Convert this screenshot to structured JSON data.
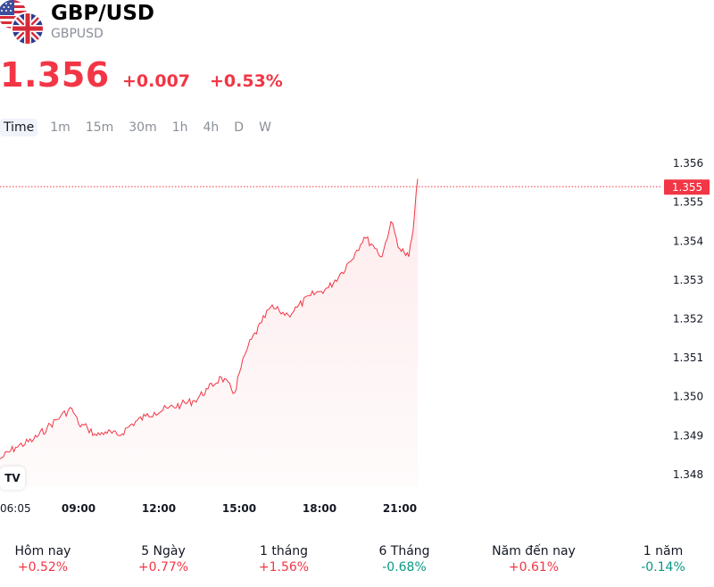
{
  "header": {
    "title": "GBP/USD",
    "code": "GBPUSD",
    "price": "1.356",
    "change_abs": "+0.007",
    "change_pct": "+0.53%"
  },
  "flags": [
    "us-flag-icon",
    "uk-flag-icon"
  ],
  "timeframes": [
    "Time",
    "1m",
    "15m",
    "30m",
    "1h",
    "4h",
    "D",
    "W"
  ],
  "active_timeframe": "Time",
  "logo_text": "TV",
  "colors": {
    "up": "#f23645",
    "down": "#089981",
    "line": "#f23645",
    "text": "#131722",
    "muted": "#8a8f98"
  },
  "chart_data": {
    "type": "area",
    "x_ticks": [
      "06:05",
      "09:00",
      "12:00",
      "15:00",
      "18:00",
      "21:00"
    ],
    "y_ticks": [
      "1.356",
      "1.355",
      "1.354",
      "1.353",
      "1.352",
      "1.351",
      "1.350",
      "1.349",
      "1.348"
    ],
    "ylim": [
      1.3477,
      1.3563
    ],
    "current_price_label": "1.355",
    "current_price": 1.3554,
    "x": [
      "06:05",
      "06:40",
      "07:20",
      "07:50",
      "08:20",
      "08:45",
      "09:00",
      "09:20",
      "09:40",
      "10:00",
      "10:30",
      "11:00",
      "11:30",
      "11:50",
      "12:20",
      "12:50",
      "13:20",
      "13:50",
      "14:20",
      "14:50",
      "15:00",
      "15:20",
      "15:50",
      "16:10",
      "16:30",
      "16:50",
      "17:10",
      "17:40",
      "18:00",
      "18:20",
      "18:50",
      "19:20",
      "19:40",
      "20:00",
      "20:20",
      "20:40",
      "21:00",
      "21:10",
      "21:20",
      "21:30",
      "21:40"
    ],
    "values": [
      1.3484,
      1.3487,
      1.3489,
      1.3492,
      1.3495,
      1.3497,
      1.3493,
      1.3492,
      1.349,
      1.3491,
      1.349,
      1.3493,
      1.3495,
      1.3496,
      1.3497,
      1.3498,
      1.3499,
      1.3502,
      1.3505,
      1.3501,
      1.3506,
      1.3513,
      1.3519,
      1.3523,
      1.3522,
      1.3521,
      1.3523,
      1.3526,
      1.3527,
      1.3528,
      1.3532,
      1.3537,
      1.3541,
      1.3539,
      1.3536,
      1.3545,
      1.3538,
      1.3537,
      1.3536,
      1.3543,
      1.3556
    ]
  },
  "performance": [
    {
      "label": "Hôm nay",
      "value": "+0.52%",
      "direction": "up"
    },
    {
      "label": "5 Ngày",
      "value": "+0.77%",
      "direction": "up"
    },
    {
      "label": "1 tháng",
      "value": "+1.56%",
      "direction": "up"
    },
    {
      "label": "6 Tháng",
      "value": "-0.68%",
      "direction": "down"
    },
    {
      "label": "Năm đến nay",
      "value": "+0.61%",
      "direction": "up"
    },
    {
      "label": "1 năm",
      "value": "-0.14%",
      "direction": "down"
    }
  ]
}
